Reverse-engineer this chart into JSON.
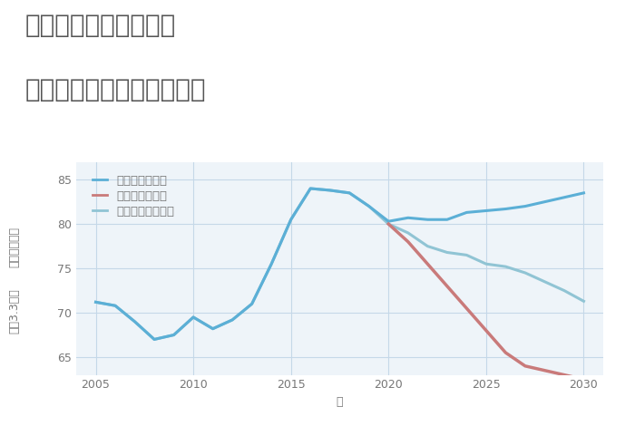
{
  "title_line1": "千葉県千葉市若葉区の",
  "title_line2": "中古マンションの価格推移",
  "xlabel": "年",
  "ylabel_line1": "単価（万円）",
  "ylabel_line2": "坪（3.3㎡）",
  "ylim": [
    63,
    87
  ],
  "xlim": [
    2004,
    2031
  ],
  "yticks": [
    65,
    70,
    75,
    80,
    85
  ],
  "xticks": [
    2005,
    2010,
    2015,
    2020,
    2025,
    2030
  ],
  "good_scenario": {
    "x": [
      2005,
      2006,
      2007,
      2008,
      2009,
      2010,
      2011,
      2012,
      2013,
      2014,
      2015,
      2016,
      2017,
      2018,
      2019,
      2020,
      2021,
      2022,
      2023,
      2024,
      2025,
      2026,
      2027,
      2028,
      2029,
      2030
    ],
    "y": [
      71.2,
      70.8,
      69.0,
      67.0,
      67.5,
      69.5,
      68.2,
      69.2,
      71.0,
      75.5,
      80.5,
      84.0,
      83.8,
      83.5,
      82.0,
      80.3,
      80.7,
      80.5,
      80.5,
      81.3,
      81.5,
      81.7,
      82.0,
      82.5,
      83.0,
      83.5
    ],
    "color": "#5BAFD6",
    "label": "グッドシナリオ",
    "linewidth": 2.2
  },
  "bad_scenario": {
    "x": [
      2020,
      2021,
      2022,
      2023,
      2024,
      2025,
      2026,
      2027,
      2028,
      2029,
      2030
    ],
    "y": [
      80.0,
      78.0,
      75.5,
      73.0,
      70.5,
      68.0,
      65.5,
      64.0,
      63.5,
      63.0,
      62.5
    ],
    "color": "#C97A7A",
    "label": "バッドシナリオ",
    "linewidth": 2.5
  },
  "normal_scenario": {
    "x": [
      2005,
      2006,
      2007,
      2008,
      2009,
      2010,
      2011,
      2012,
      2013,
      2014,
      2015,
      2016,
      2017,
      2018,
      2019,
      2020,
      2021,
      2022,
      2023,
      2024,
      2025,
      2026,
      2027,
      2028,
      2029,
      2030
    ],
    "y": [
      71.2,
      70.8,
      69.0,
      67.0,
      67.5,
      69.5,
      68.2,
      69.2,
      71.0,
      75.5,
      80.5,
      84.0,
      83.8,
      83.5,
      82.0,
      80.0,
      79.0,
      77.5,
      76.8,
      76.5,
      75.5,
      75.2,
      74.5,
      73.5,
      72.5,
      71.3
    ],
    "color": "#90C4D4",
    "label": "ノーマルシナリオ",
    "linewidth": 2.2
  },
  "bg_color": "#FFFFFF",
  "plot_bg_color": "#EEF4F9",
  "grid_color": "#C5D8E8",
  "title_color": "#555555",
  "axis_color": "#777777",
  "legend_fontsize": 9.5,
  "title_fontsize": 20,
  "axis_label_fontsize": 9,
  "tick_fontsize": 9
}
